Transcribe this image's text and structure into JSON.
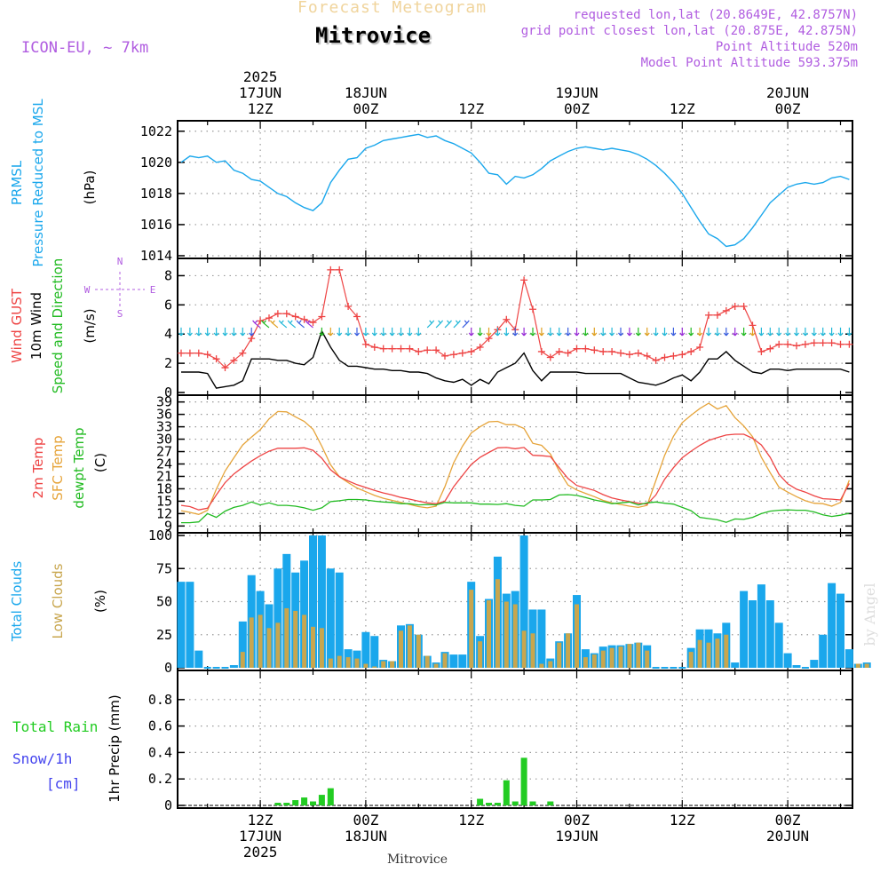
{
  "header": {
    "product": "Forecast Meteogram",
    "location": "Mitrovice",
    "model": "ICON-EU, ~ 7km",
    "requested": "requested lon,lat (20.8649E, 42.8757N)",
    "grid_point": "grid point closest lon,lat (20.875E, 42.875N)",
    "point_altitude": "Point Altitude 520m",
    "model_altitude": "Model Point Altitude 593.375m",
    "footer_location": "Mitrovice",
    "watermark": "by Angel"
  },
  "colors": {
    "pressure": "#1aa7ec",
    "gust": "#ee4444",
    "wind": "#000000",
    "wind_dir_label": "#22bb22",
    "temp2m": "#ee4444",
    "sfc_temp": "#e6a43a",
    "dewpoint": "#22bb22",
    "total_clouds": "#1aa7ec",
    "low_clouds": "#c8a64e",
    "rain": "#22cc22",
    "snow": "#4444ee",
    "compass": "#b05ce0",
    "grid": "#999999"
  },
  "chart_data": [
    {
      "type": "line",
      "id": "pressure",
      "ylabel_lines": [
        "PRMSL",
        "Pressure Reduced to MSL"
      ],
      "unit": "(hPa)",
      "ylim": [
        1014,
        1022.5
      ],
      "yticks": [
        1014,
        1016,
        1018,
        1020,
        1022
      ],
      "grid": true,
      "x_start": "2025-06-17T03Z",
      "x_step_hours": 1,
      "series": [
        {
          "values": [
            1020.0,
            1020.4,
            1020.3,
            1020.4,
            1020.0,
            1020.1,
            1019.5,
            1019.3,
            1018.9,
            1018.8,
            1018.4,
            1018.0,
            1017.8,
            1017.4,
            1017.1,
            1016.9,
            1017.4,
            1018.7,
            1019.5,
            1020.2,
            1020.3,
            1020.9,
            1021.1,
            1021.4,
            1021.5,
            1021.6,
            1021.7,
            1021.8,
            1021.6,
            1021.7,
            1021.4,
            1021.2,
            1020.9,
            1020.6,
            1020.0,
            1019.3,
            1019.2,
            1018.6,
            1019.1,
            1019.0,
            1019.2,
            1019.6,
            1020.1,
            1020.4,
            1020.7,
            1020.9,
            1021.0,
            1020.9,
            1020.8,
            1020.9,
            1020.8,
            1020.7,
            1020.5,
            1020.2,
            1019.8,
            1019.3,
            1018.7,
            1018.0,
            1017.1,
            1016.2,
            1015.4,
            1015.1,
            1014.6,
            1014.7,
            1015.1,
            1015.8,
            1016.6,
            1017.4,
            1017.9,
            1018.4,
            1018.6,
            1018.7,
            1018.6,
            1018.7,
            1019.0,
            1019.1,
            1018.9
          ]
        }
      ]
    },
    {
      "type": "line",
      "id": "wind",
      "ylabel_lines": [
        "Wind GUST",
        "10m Wind",
        "Speed and Direction"
      ],
      "unit": "(m/s)",
      "ylim": [
        0,
        9
      ],
      "yticks": [
        0,
        2,
        4,
        6,
        8
      ],
      "grid": true,
      "compass": {
        "n": "N",
        "s": "S",
        "e": "E",
        "w": "W"
      },
      "series": [
        {
          "name": "Wind GUST",
          "marker": "plus",
          "values": [
            2.7,
            2.7,
            2.7,
            2.6,
            2.3,
            1.7,
            2.2,
            2.7,
            3.7,
            4.9,
            5.1,
            5.4,
            5.4,
            5.2,
            5.0,
            4.8,
            5.2,
            8.4,
            8.4,
            5.9,
            5.2,
            3.3,
            3.1,
            3.0,
            3.0,
            3.0,
            3.0,
            2.8,
            2.9,
            2.9,
            2.5,
            2.6,
            2.7,
            2.8,
            3.1,
            3.7,
            4.3,
            5.0,
            4.3,
            7.7,
            5.7,
            2.8,
            2.4,
            2.8,
            2.7,
            3.0,
            3.0,
            2.9,
            2.8,
            2.8,
            2.7,
            2.6,
            2.7,
            2.5,
            2.2,
            2.4,
            2.5,
            2.6,
            2.8,
            3.1,
            5.3,
            5.3,
            5.6,
            5.9,
            5.9,
            4.6,
            2.8,
            3.0,
            3.3,
            3.3,
            3.2,
            3.3,
            3.4,
            3.4,
            3.4,
            3.3,
            3.3
          ]
        },
        {
          "name": "10m Wind",
          "values": [
            1.4,
            1.4,
            1.4,
            1.3,
            0.3,
            0.4,
            0.5,
            0.8,
            2.3,
            2.3,
            2.3,
            2.2,
            2.2,
            2.0,
            1.9,
            2.4,
            4.2,
            3.1,
            2.2,
            1.8,
            1.8,
            1.7,
            1.6,
            1.6,
            1.5,
            1.5,
            1.4,
            1.4,
            1.3,
            1.0,
            0.8,
            0.7,
            0.9,
            0.5,
            0.9,
            0.6,
            1.4,
            1.7,
            2.0,
            2.7,
            1.5,
            0.8,
            1.4,
            1.4,
            1.4,
            1.4,
            1.3,
            1.3,
            1.3,
            1.3,
            1.3,
            1.0,
            0.7,
            0.6,
            0.5,
            0.7,
            1.0,
            1.2,
            0.8,
            1.4,
            2.3,
            2.3,
            2.8,
            2.2,
            1.8,
            1.4,
            1.3,
            1.6,
            1.6,
            1.5,
            1.6,
            1.6,
            1.6,
            1.6,
            1.6,
            1.6,
            1.4
          ]
        }
      ]
    },
    {
      "type": "line",
      "id": "temperature",
      "ylabel_lines": [
        "2m Temp",
        "SFC Temp",
        "dewpt Temp"
      ],
      "unit": "(C)",
      "ylim": [
        8,
        40
      ],
      "yticks": [
        9,
        12,
        15,
        18,
        21,
        24,
        27,
        30,
        33,
        36,
        39
      ],
      "grid": true,
      "series": [
        {
          "name": "2m Temp",
          "values": [
            14.0,
            13.7,
            12.9,
            13.3,
            16.5,
            19.5,
            21.6,
            23.2,
            24.7,
            26.0,
            27.1,
            27.8,
            27.8,
            27.8,
            27.9,
            27.3,
            25.4,
            22.6,
            20.9,
            19.9,
            19.0,
            18.3,
            17.6,
            17.0,
            16.5,
            15.9,
            15.5,
            15.0,
            14.6,
            14.4,
            15.0,
            18.5,
            21.2,
            23.9,
            25.6,
            26.8,
            27.9,
            28.0,
            27.7,
            28.0,
            26.1,
            26.0,
            25.8,
            23.1,
            20.5,
            18.8,
            18.2,
            17.6,
            16.6,
            15.8,
            15.3,
            14.9,
            14.5,
            14.3,
            16.5,
            20.3,
            23.1,
            25.5,
            27.1,
            28.5,
            29.7,
            30.4,
            31.0,
            31.2,
            31.2,
            30.2,
            28.6,
            25.6,
            21.5,
            19.2,
            17.9,
            17.2,
            16.3,
            15.6,
            15.5,
            15.3,
            19.3
          ]
        },
        {
          "name": "SFC Temp",
          "values": [
            12.7,
            12.3,
            11.8,
            12.8,
            17.9,
            22.3,
            25.5,
            28.6,
            30.5,
            32.3,
            34.9,
            36.7,
            36.6,
            35.4,
            34.3,
            32.4,
            28.3,
            23.8,
            20.9,
            19.5,
            18.2,
            17.3,
            16.4,
            15.7,
            15.2,
            14.7,
            14.2,
            13.7,
            13.4,
            13.8,
            18.5,
            24.3,
            28.3,
            31.5,
            33.0,
            34.2,
            34.3,
            33.5,
            33.5,
            32.6,
            29.0,
            28.5,
            26.4,
            22.3,
            18.9,
            17.7,
            16.9,
            16.1,
            15.2,
            14.6,
            14.2,
            13.8,
            13.5,
            14.0,
            20.0,
            26.1,
            30.7,
            34.0,
            35.8,
            37.4,
            38.7,
            37.3,
            38.1,
            35.2,
            33.2,
            30.6,
            25.6,
            21.9,
            18.4,
            17.2,
            16.1,
            15.1,
            14.5,
            14.4,
            13.8,
            14.7,
            20.1
          ]
        },
        {
          "name": "dewpt Temp",
          "values": [
            9.8,
            9.8,
            10.0,
            12.0,
            11.1,
            12.6,
            13.5,
            14.0,
            14.8,
            14.1,
            14.6,
            14.0,
            14.0,
            13.8,
            13.4,
            12.8,
            13.4,
            14.9,
            15.1,
            15.4,
            15.4,
            15.3,
            15.0,
            14.8,
            14.7,
            14.4,
            14.4,
            14.1,
            14.2,
            14.1,
            14.7,
            14.6,
            14.6,
            14.6,
            14.3,
            14.3,
            14.2,
            14.4,
            14.0,
            13.8,
            15.3,
            15.3,
            15.4,
            16.5,
            16.6,
            16.4,
            15.9,
            15.3,
            14.9,
            14.4,
            14.6,
            14.8,
            14.1,
            14.6,
            14.8,
            14.5,
            14.3,
            13.5,
            12.7,
            11.1,
            10.8,
            10.5,
            9.9,
            10.7,
            10.6,
            11.1,
            12.0,
            12.6,
            12.8,
            12.9,
            12.8,
            12.8,
            12.4,
            11.7,
            11.3,
            11.6,
            12.1
          ]
        }
      ]
    },
    {
      "type": "bar",
      "id": "clouds",
      "ylabel_lines": [
        "Total Clouds",
        "Low Clouds"
      ],
      "unit": "(%)",
      "ylim": [
        0,
        100
      ],
      "yticks": [
        0,
        25,
        50,
        75,
        100
      ],
      "grid": true,
      "series": [
        {
          "name": "Total Clouds",
          "values": [
            65,
            65,
            13,
            0,
            0,
            0,
            2,
            35,
            70,
            58,
            48,
            75,
            86,
            72,
            81,
            100,
            100,
            75,
            72,
            14,
            13,
            27,
            24,
            6,
            5,
            32,
            33,
            25,
            9,
            4,
            12,
            10,
            10,
            65,
            24,
            52,
            84,
            56,
            58,
            100,
            44,
            44,
            7,
            20,
            26,
            55,
            14,
            11,
            16,
            17,
            17,
            18,
            19,
            17,
            0,
            0,
            0,
            0,
            15,
            29,
            29,
            26,
            34,
            4,
            58,
            51,
            63,
            51,
            34,
            11,
            2,
            0,
            6,
            25,
            64,
            56,
            14,
            3,
            4
          ]
        },
        {
          "name": "Low Clouds",
          "values": [
            0,
            0,
            0,
            0,
            0,
            0,
            0,
            12,
            38,
            40,
            30,
            34,
            45,
            43,
            40,
            31,
            30,
            7,
            9,
            8,
            7,
            3,
            1,
            5,
            5,
            28,
            32,
            25,
            9,
            3,
            11,
            0,
            0,
            59,
            20,
            51,
            67,
            50,
            48,
            28,
            26,
            3,
            5,
            19,
            26,
            48,
            8,
            10,
            13,
            15,
            16,
            18,
            19,
            13,
            0,
            0,
            0,
            0,
            12,
            21,
            19,
            22,
            25,
            0,
            0,
            0,
            0,
            0,
            0,
            0,
            0,
            0,
            0,
            0,
            0,
            0,
            0,
            3,
            3
          ]
        }
      ]
    },
    {
      "type": "bar",
      "id": "precip",
      "ylabel_lines": [
        "1hr Precip (mm)"
      ],
      "side_labels": [
        "Total Rain",
        "Snow/1h",
        "[cm]"
      ],
      "ylim": [
        0,
        1.0
      ],
      "yticks": [
        0,
        0.2,
        0.4,
        0.6,
        0.8
      ],
      "grid": true,
      "series": [
        {
          "name": "Total Rain",
          "values": [
            0,
            0,
            0,
            0,
            0,
            0,
            0,
            0,
            0,
            0,
            0,
            0.02,
            0.02,
            0.04,
            0.06,
            0.03,
            0.08,
            0.13,
            0,
            0,
            0,
            0,
            0,
            0,
            0,
            0,
            0,
            0,
            0,
            0,
            0,
            0,
            0,
            0,
            0.05,
            0.02,
            0.02,
            0.19,
            0.03,
            0.36,
            0.03,
            0,
            0.03,
            0,
            0,
            0,
            0,
            0,
            0,
            0,
            0,
            0,
            0,
            0,
            0,
            0,
            0,
            0,
            0,
            0,
            0,
            0,
            0,
            0,
            0,
            0,
            0,
            0,
            0,
            0,
            0,
            0,
            0,
            0,
            0,
            0,
            0
          ]
        }
      ]
    }
  ],
  "time_axis": {
    "top": [
      {
        "hour": 12,
        "lines": [
          "2025",
          "17JUN",
          "12Z"
        ]
      },
      {
        "hour": 24,
        "lines": [
          "18JUN",
          "00Z"
        ]
      },
      {
        "hour": 36,
        "lines": [
          "12Z"
        ]
      },
      {
        "hour": 48,
        "lines": [
          "19JUN",
          "00Z"
        ]
      },
      {
        "hour": 60,
        "lines": [
          "12Z"
        ]
      },
      {
        "hour": 72,
        "lines": [
          "20JUN",
          "00Z"
        ]
      }
    ],
    "bottom": [
      {
        "hour": 12,
        "lines": [
          "12Z",
          "17JUN",
          "2025"
        ]
      },
      {
        "hour": 24,
        "lines": [
          "00Z",
          "18JUN"
        ]
      },
      {
        "hour": 36,
        "lines": [
          "12Z"
        ]
      },
      {
        "hour": 48,
        "lines": [
          "00Z",
          "19JUN"
        ]
      },
      {
        "hour": 60,
        "lines": [
          "12Z"
        ]
      },
      {
        "hour": 72,
        "lines": [
          "00Z",
          "20JUN"
        ]
      }
    ]
  }
}
